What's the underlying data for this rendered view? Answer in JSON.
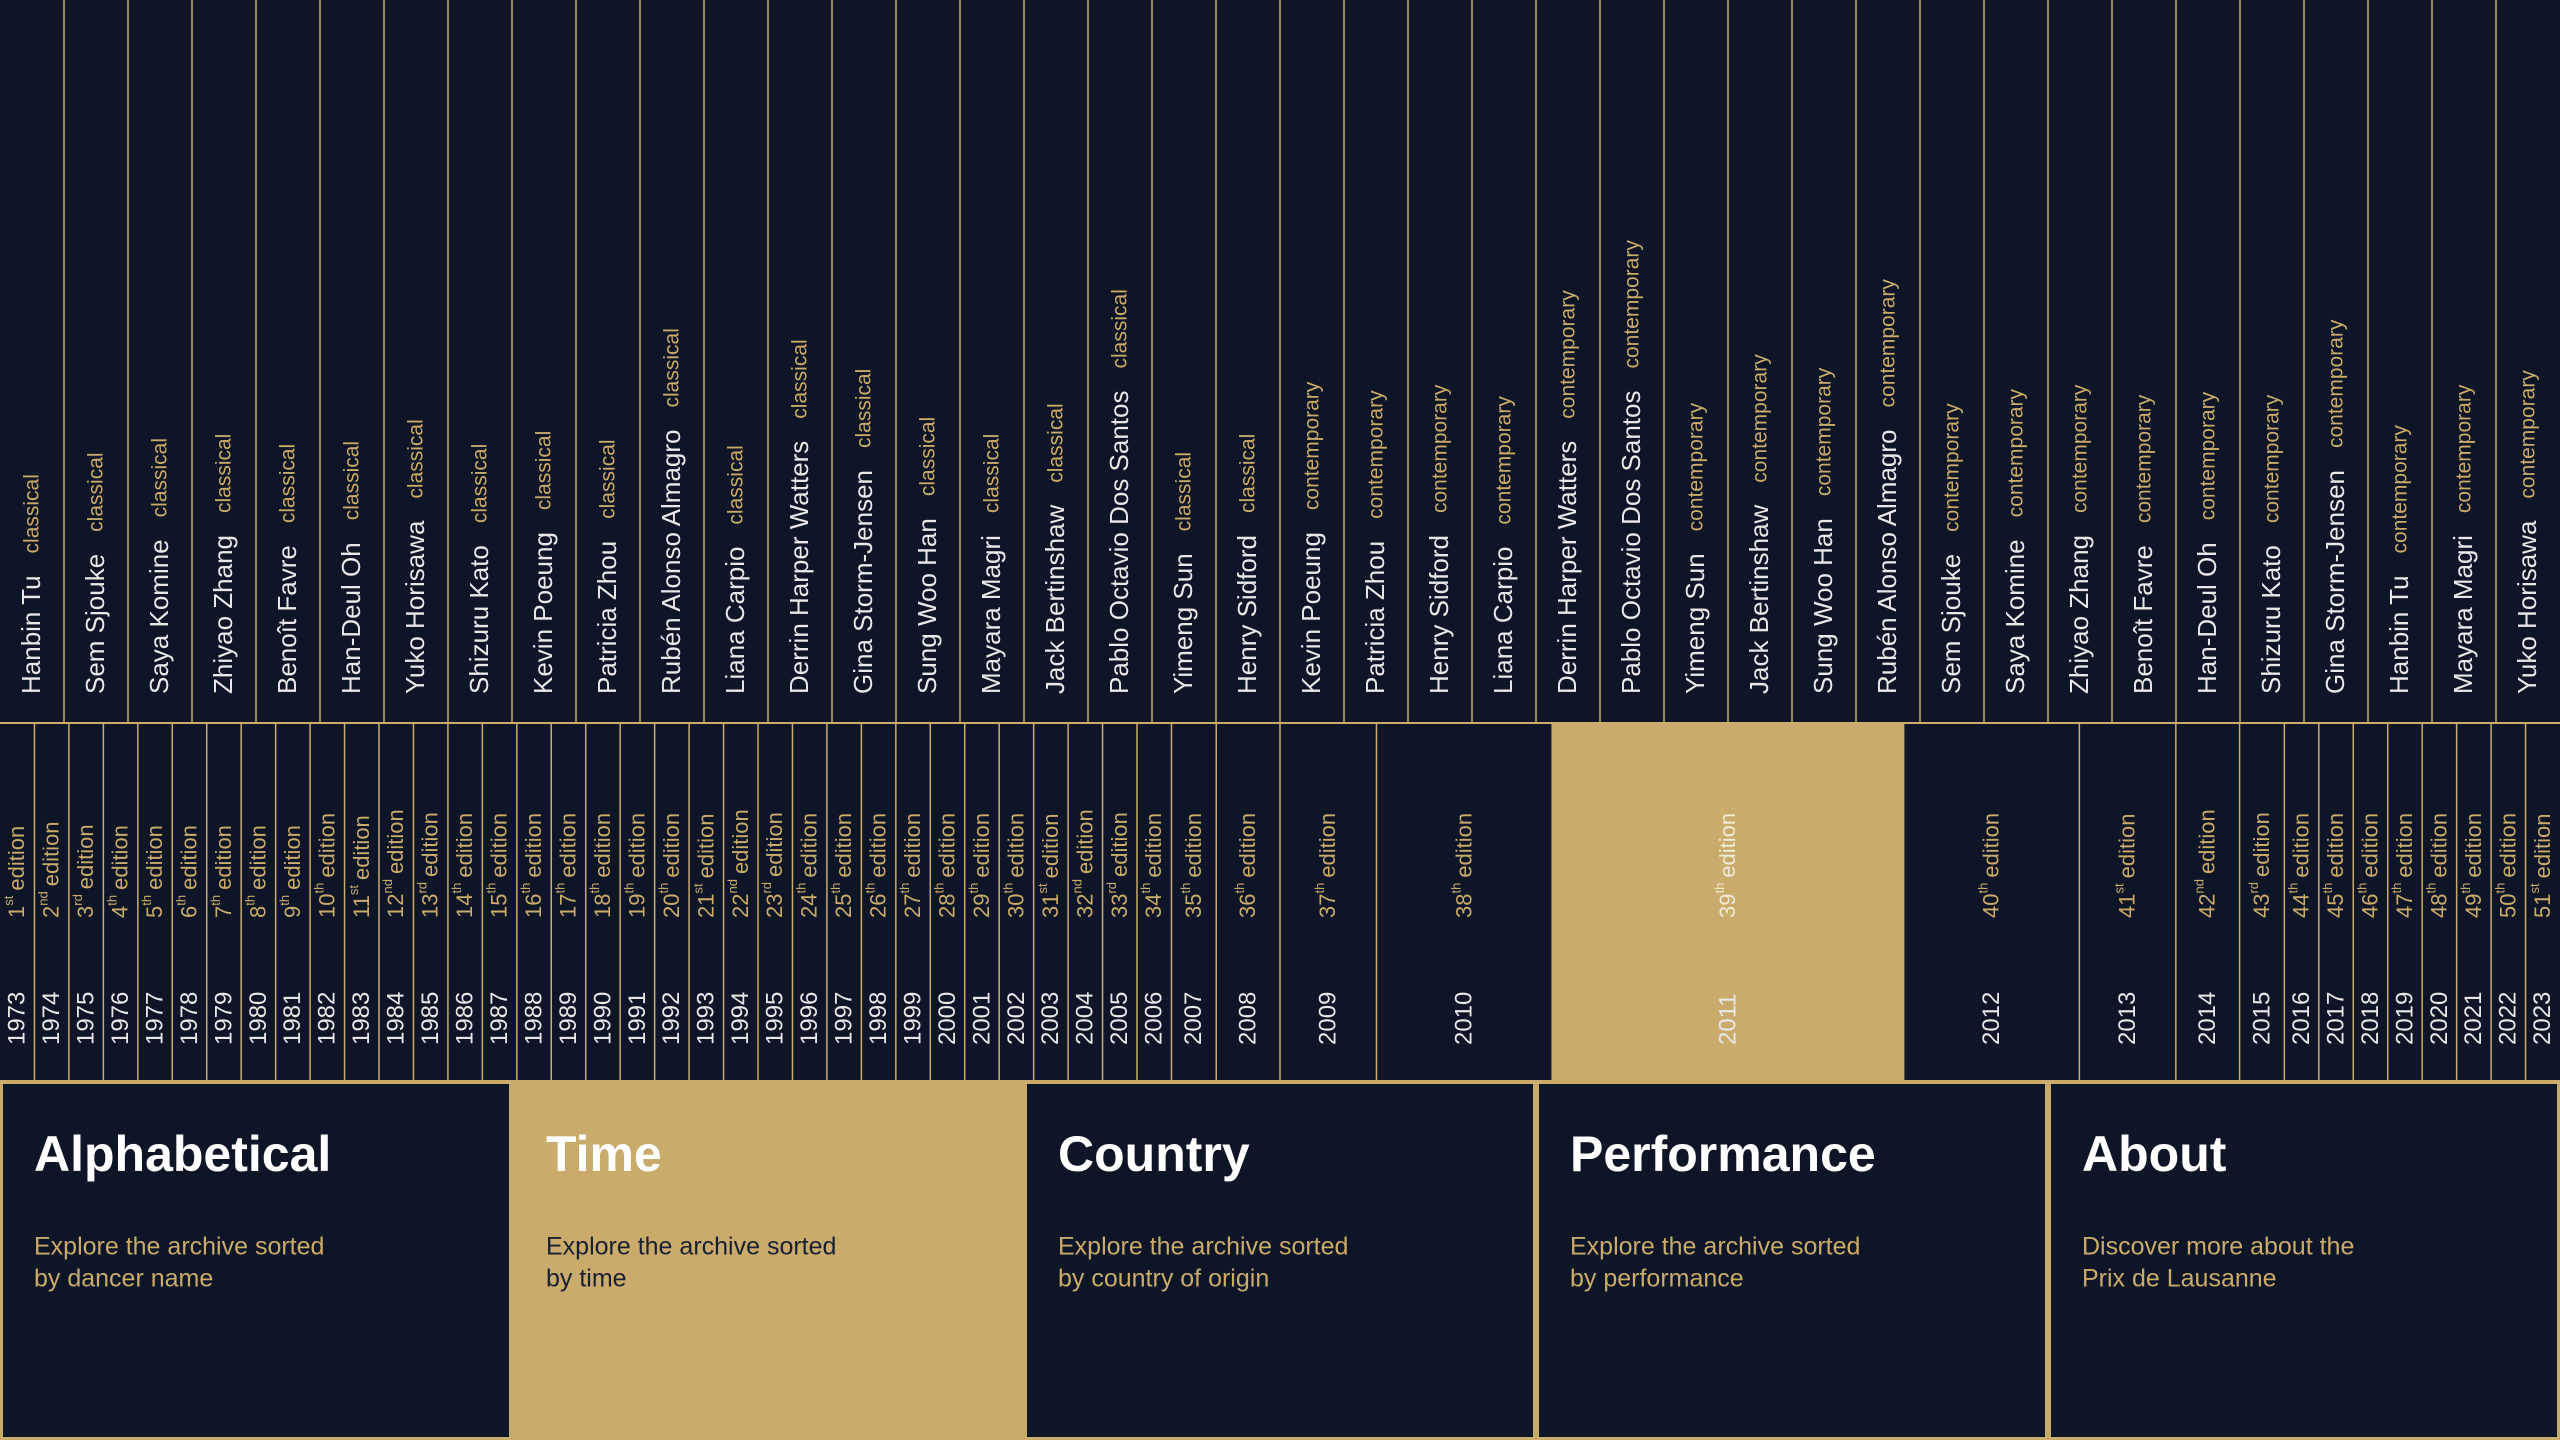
{
  "dancers": [
    {
      "name": "Hanbin Tu",
      "style": "classical"
    },
    {
      "name": "Sem Sjouke",
      "style": "classical"
    },
    {
      "name": "Saya Komine",
      "style": "classical"
    },
    {
      "name": "Zhiyao Zhang",
      "style": "classical"
    },
    {
      "name": "Benoît Favre",
      "style": "classical"
    },
    {
      "name": "Han-Deul Oh",
      "style": "classical"
    },
    {
      "name": "Yuko Horisawa",
      "style": "classical"
    },
    {
      "name": "Shizuru Kato",
      "style": "classical"
    },
    {
      "name": "Kevin Poeung",
      "style": "classical"
    },
    {
      "name": "Patricia Zhou",
      "style": "classical"
    },
    {
      "name": "Rubén Alonso Almagro",
      "style": "classical"
    },
    {
      "name": "Liana Carpio",
      "style": "classical"
    },
    {
      "name": "Derrin Harper Watters",
      "style": "classical"
    },
    {
      "name": "Gina Storm-Jensen",
      "style": "classical"
    },
    {
      "name": "Sung Woo Han",
      "style": "classical"
    },
    {
      "name": "Mayara Magri",
      "style": "classical"
    },
    {
      "name": "Jack Bertinshaw",
      "style": "classical"
    },
    {
      "name": "Pablo Octavio Dos Santos",
      "style": "classical"
    },
    {
      "name": "Yimeng Sun",
      "style": "classical"
    },
    {
      "name": "Henry Sidford",
      "style": "classical"
    },
    {
      "name": "Kevin Poeung",
      "style": "contemporary"
    },
    {
      "name": "Patricia Zhou",
      "style": "contemporary"
    },
    {
      "name": "Henry Sidford",
      "style": "contemporary"
    },
    {
      "name": "Liana Carpio",
      "style": "contemporary"
    },
    {
      "name": "Derrin Harper Watters",
      "style": "contemporary"
    },
    {
      "name": "Pablo Octavio Dos Santos",
      "style": "contemporary"
    },
    {
      "name": "Yimeng Sun",
      "style": "contemporary"
    },
    {
      "name": "Jack Bertinshaw",
      "style": "contemporary"
    },
    {
      "name": "Sung Woo Han",
      "style": "contemporary"
    },
    {
      "name": "Rubén Alonso Almagro",
      "style": "contemporary"
    },
    {
      "name": "Sem Sjouke",
      "style": "contemporary"
    },
    {
      "name": "Saya Komine",
      "style": "contemporary"
    },
    {
      "name": "Zhiyao Zhang",
      "style": "contemporary"
    },
    {
      "name": "Benoît Favre",
      "style": "contemporary"
    },
    {
      "name": "Han-Deul Oh",
      "style": "contemporary"
    },
    {
      "name": "Shizuru Kato",
      "style": "contemporary"
    },
    {
      "name": "Gina Storm-Jensen",
      "style": "contemporary"
    },
    {
      "name": "Hanbin Tu",
      "style": "contemporary"
    },
    {
      "name": "Mayara Magri",
      "style": "contemporary"
    },
    {
      "name": "Yuko Horisawa",
      "style": "contemporary"
    }
  ],
  "edition_word": "edition",
  "editions": [
    {
      "year": "1973",
      "number": "1",
      "suffix": "st"
    },
    {
      "year": "1974",
      "number": "2",
      "suffix": "nd"
    },
    {
      "year": "1975",
      "number": "3",
      "suffix": "rd"
    },
    {
      "year": "1976",
      "number": "4",
      "suffix": "th"
    },
    {
      "year": "1977",
      "number": "5",
      "suffix": "th"
    },
    {
      "year": "1978",
      "number": "6",
      "suffix": "th"
    },
    {
      "year": "1979",
      "number": "7",
      "suffix": "th"
    },
    {
      "year": "1980",
      "number": "8",
      "suffix": "th"
    },
    {
      "year": "1981",
      "number": "9",
      "suffix": "th"
    },
    {
      "year": "1982",
      "number": "10",
      "suffix": "th"
    },
    {
      "year": "1983",
      "number": "11",
      "suffix": "st"
    },
    {
      "year": "1984",
      "number": "12",
      "suffix": "nd"
    },
    {
      "year": "1985",
      "number": "13",
      "suffix": "rd"
    },
    {
      "year": "1986",
      "number": "14",
      "suffix": "th"
    },
    {
      "year": "1987",
      "number": "15",
      "suffix": "th"
    },
    {
      "year": "1988",
      "number": "16",
      "suffix": "th"
    },
    {
      "year": "1989",
      "number": "17",
      "suffix": "th"
    },
    {
      "year": "1990",
      "number": "18",
      "suffix": "th"
    },
    {
      "year": "1991",
      "number": "19",
      "suffix": "th"
    },
    {
      "year": "1992",
      "number": "20",
      "suffix": "th"
    },
    {
      "year": "1993",
      "number": "21",
      "suffix": "st"
    },
    {
      "year": "1994",
      "number": "22",
      "suffix": "nd"
    },
    {
      "year": "1995",
      "number": "23",
      "suffix": "rd"
    },
    {
      "year": "1996",
      "number": "24",
      "suffix": "th"
    },
    {
      "year": "1997",
      "number": "25",
      "suffix": "th"
    },
    {
      "year": "1998",
      "number": "26",
      "suffix": "th"
    },
    {
      "year": "1999",
      "number": "27",
      "suffix": "th"
    },
    {
      "year": "2000",
      "number": "28",
      "suffix": "th"
    },
    {
      "year": "2001",
      "number": "29",
      "suffix": "th"
    },
    {
      "year": "2002",
      "number": "30",
      "suffix": "th"
    },
    {
      "year": "2003",
      "number": "31",
      "suffix": "st"
    },
    {
      "year": "2004",
      "number": "32",
      "suffix": "nd"
    },
    {
      "year": "2005",
      "number": "33",
      "suffix": "rd"
    },
    {
      "year": "2006",
      "number": "34",
      "suffix": "th"
    },
    {
      "year": "2007",
      "number": "35",
      "suffix": "th"
    },
    {
      "year": "2008",
      "number": "36",
      "suffix": "th"
    },
    {
      "year": "2009",
      "number": "37",
      "suffix": "th"
    },
    {
      "year": "2010",
      "number": "38",
      "suffix": "th"
    },
    {
      "year": "2011",
      "number": "39",
      "suffix": "th",
      "active": true
    },
    {
      "year": "2012",
      "number": "40",
      "suffix": "th"
    },
    {
      "year": "2013",
      "number": "41",
      "suffix": "st"
    },
    {
      "year": "2014",
      "number": "42",
      "suffix": "nd"
    },
    {
      "year": "2015",
      "number": "43",
      "suffix": "rd"
    },
    {
      "year": "2016",
      "number": "44",
      "suffix": "th"
    },
    {
      "year": "2017",
      "number": "45",
      "suffix": "th"
    },
    {
      "year": "2018",
      "number": "46",
      "suffix": "th"
    },
    {
      "year": "2019",
      "number": "47",
      "suffix": "th"
    },
    {
      "year": "2020",
      "number": "48",
      "suffix": "th"
    },
    {
      "year": "2021",
      "number": "49",
      "suffix": "th"
    },
    {
      "year": "2022",
      "number": "50",
      "suffix": "th"
    },
    {
      "year": "2023",
      "number": "51",
      "suffix": "st"
    }
  ],
  "nav": [
    {
      "title": "Alphabetical",
      "description": [
        "Explore the archive sorted",
        "by dancer name"
      ]
    },
    {
      "title": "Time",
      "description": [
        "Explore the archive sorted",
        "by time"
      ],
      "active": true
    },
    {
      "title": "Country",
      "description": [
        "Explore the archive sorted",
        "by country of origin"
      ]
    },
    {
      "title": "Performance",
      "description": [
        "Explore the archive sorted",
        "by performance"
      ]
    },
    {
      "title": "About",
      "description": [
        "Discover more about the",
        "Prix de Lausanne"
      ]
    }
  ]
}
